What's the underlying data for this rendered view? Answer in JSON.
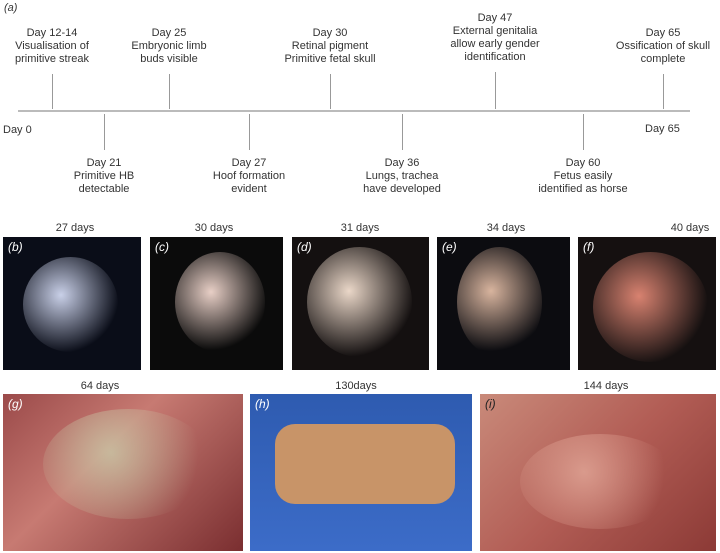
{
  "panel_a_label": "(a)",
  "timeline": {
    "start": "Day 0",
    "end": "Day 65",
    "above": [
      {
        "day": "Day 12-14",
        "lines": [
          "Visualisation of",
          "primitive streak"
        ]
      },
      {
        "day": "Day 25",
        "lines": [
          "Embryonic limb",
          "buds visible"
        ]
      },
      {
        "day": "Day 30",
        "lines": [
          "Retinal pigment",
          "Primitive fetal skull"
        ]
      },
      {
        "day": "Day 47",
        "lines": [
          "External genitalia",
          "allow early gender",
          "identification"
        ]
      },
      {
        "day": "Day 65",
        "lines": [
          "Ossification of skull",
          "complete"
        ]
      }
    ],
    "below": [
      {
        "day": "Day 21",
        "lines": [
          "Primitive HB",
          "detectable"
        ]
      },
      {
        "day": "Day 27",
        "lines": [
          "Hoof formation",
          "evident"
        ]
      },
      {
        "day": "Day 36",
        "lines": [
          "Lungs, trachea",
          "have developed"
        ]
      },
      {
        "day": "Day 60",
        "lines": [
          "Fetus easily",
          "identified as horse"
        ]
      }
    ]
  },
  "photos": [
    {
      "label": "(b)",
      "caption": "27 days"
    },
    {
      "label": "(c)",
      "caption": "30 days"
    },
    {
      "label": "(d)",
      "caption": "31 days"
    },
    {
      "label": "(e)",
      "caption": "34 days"
    },
    {
      "label": "(f)",
      "caption": "40 days"
    },
    {
      "label": "(g)",
      "caption": "64 days"
    },
    {
      "label": "(h)",
      "caption": "130days"
    },
    {
      "label": "(i)",
      "caption": "144 days"
    }
  ]
}
